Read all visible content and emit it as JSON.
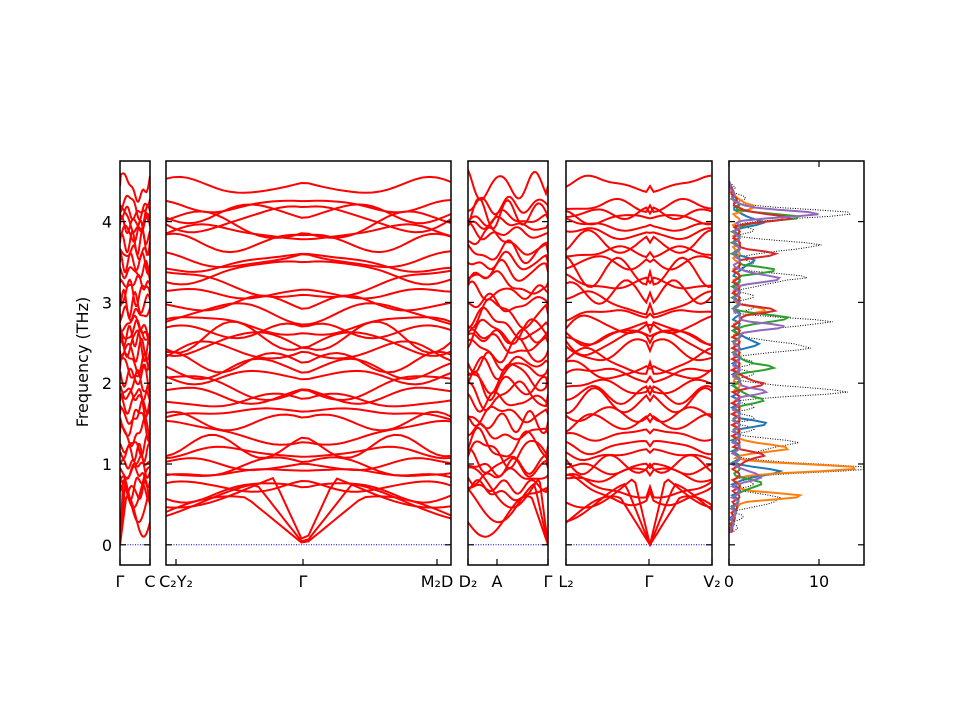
{
  "chart_data": {
    "type": "line",
    "title": "",
    "ylabel": "Frequency (THz)",
    "ylim": [
      -0.25,
      4.75
    ],
    "yticks": [
      "0",
      "1",
      "2",
      "3",
      "4"
    ],
    "ytick_values": [
      0,
      1,
      2,
      3,
      4
    ],
    "line_color": "#ff0000",
    "zero_line_color": "#0000ff",
    "panels": [
      {
        "name": "segment-1",
        "qpoint_labels": [
          "Γ",
          "C"
        ],
        "x_units": 0.8
      },
      {
        "name": "segment-2",
        "qpoint_labels": [
          "C₂Y₂",
          "Γ",
          "M₂D"
        ],
        "x_units": 7.9
      },
      {
        "name": "segment-3",
        "qpoint_labels": [
          "D₂",
          "A",
          "Γ"
        ],
        "x_units": 2.2
      },
      {
        "name": "segment-4",
        "qpoint_labels": [
          "L₂",
          "Γ",
          "V₂"
        ],
        "x_units": 4.0
      }
    ],
    "band_frequencies_at_gamma_thz": [
      0,
      0,
      0,
      0.66,
      0.72,
      0.86,
      0.95,
      1.0,
      1.14,
      1.22,
      1.38,
      1.52,
      1.62,
      1.78,
      1.86,
      1.96,
      2.08,
      2.18,
      2.26,
      2.4,
      2.5,
      2.58,
      2.64,
      2.72,
      2.86,
      2.98,
      3.12,
      3.24,
      3.38,
      3.5,
      3.62,
      3.74,
      3.86,
      3.96,
      4.04,
      4.1,
      4.2,
      4.44
    ],
    "dos": {
      "xlabel": "",
      "xticks": [
        "0",
        "10"
      ],
      "xtick_values": [
        0,
        10
      ],
      "xlim": [
        0,
        15
      ],
      "series": [
        {
          "color": "#000000",
          "style": "dotted",
          "peaks": [
            [
              0.55,
              5
            ],
            [
              0.95,
              15
            ],
            [
              1.25,
              6
            ],
            [
              1.9,
              12
            ],
            [
              2.45,
              8
            ],
            [
              2.75,
              10
            ],
            [
              3.3,
              7
            ],
            [
              3.7,
              9
            ],
            [
              4.1,
              13
            ]
          ]
        },
        {
          "color": "#1f77b4",
          "style": "solid",
          "peaks": [
            [
              0.9,
              5
            ],
            [
              1.5,
              3
            ],
            [
              2.5,
              2.5
            ],
            [
              3.5,
              2
            ],
            [
              4.0,
              3
            ]
          ]
        },
        {
          "color": "#ff7f0e",
          "style": "solid",
          "peaks": [
            [
              0.6,
              7
            ],
            [
              0.95,
              14
            ],
            [
              1.2,
              6
            ],
            [
              2.9,
              3
            ],
            [
              4.2,
              2
            ]
          ]
        },
        {
          "color": "#2ca02c",
          "style": "solid",
          "peaks": [
            [
              0.75,
              3
            ],
            [
              1.8,
              3
            ],
            [
              2.2,
              4
            ],
            [
              2.8,
              6
            ],
            [
              3.4,
              4
            ],
            [
              4.05,
              7
            ]
          ]
        },
        {
          "color": "#d62728",
          "style": "solid",
          "peaks": [
            [
              1.1,
              3
            ],
            [
              2.0,
              3
            ],
            [
              2.9,
              4
            ],
            [
              3.6,
              4
            ],
            [
              4.05,
              6
            ]
          ]
        },
        {
          "color": "#9467bd",
          "style": "solid",
          "peaks": [
            [
              0.85,
              3
            ],
            [
              1.9,
              3
            ],
            [
              2.7,
              5
            ],
            [
              3.3,
              5
            ],
            [
              4.1,
              9
            ]
          ]
        }
      ]
    }
  }
}
